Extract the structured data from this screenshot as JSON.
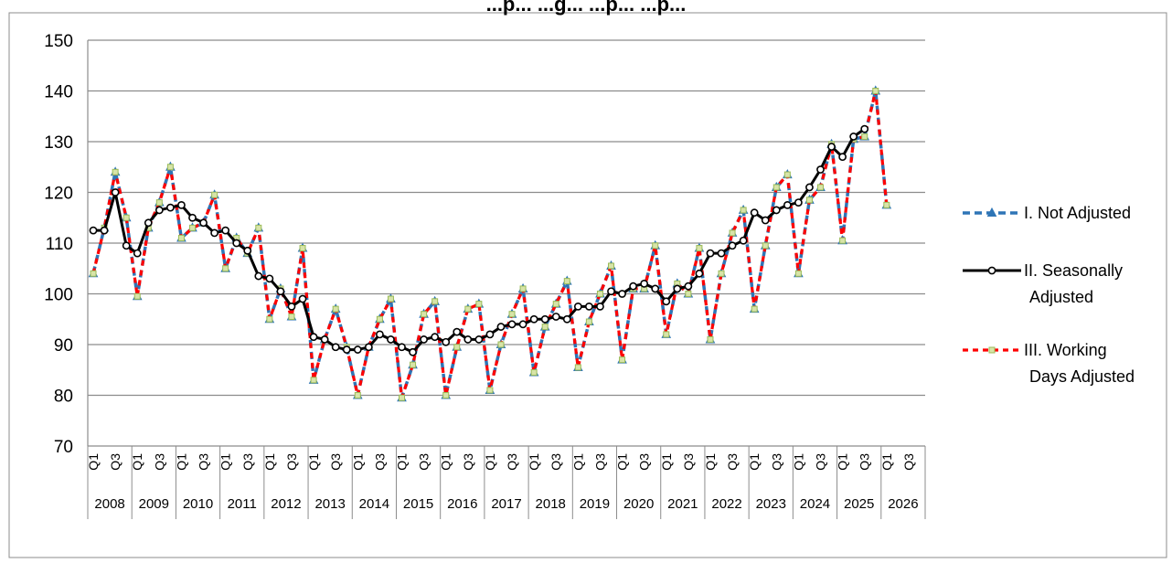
{
  "chart_data": {
    "type": "line",
    "title": "...p... ...g... ...p... ...p...",
    "xlabel": "",
    "ylabel": "",
    "ylim": [
      70,
      150
    ],
    "yticks": [
      70,
      80,
      90,
      100,
      110,
      120,
      130,
      140,
      150
    ],
    "grid": true,
    "legend_position": "right",
    "quarter_tick_labels": [
      "Q1",
      "Q3"
    ],
    "years": [
      "2008",
      "2009",
      "2010",
      "2011",
      "2012",
      "2013",
      "2014",
      "2015",
      "2016",
      "2017",
      "2018",
      "2019",
      "2020",
      "2021",
      "2022",
      "2023",
      "2024",
      "2025",
      "2026"
    ],
    "x_start": "2008-Q1",
    "series": [
      {
        "name": "I. Not Adjusted",
        "color": "#2E75B6",
        "marker": "triangle",
        "values": [
          104,
          113,
          124,
          115,
          99.5,
          113,
          118,
          125,
          111,
          113,
          114,
          119.5,
          105,
          111,
          108,
          113,
          95,
          101,
          95.5,
          109,
          83,
          91,
          97,
          89.5,
          80,
          89.5,
          95,
          99,
          79.5,
          86,
          96,
          98.5,
          80,
          89.5,
          97,
          98,
          81,
          90,
          96,
          101,
          84.5,
          93.5,
          98,
          102.5,
          85.5,
          94.5,
          100,
          105.5,
          87,
          101,
          101,
          109.5,
          92,
          102,
          100,
          109,
          91,
          104,
          112,
          116.5,
          97,
          109.5,
          121,
          123.5,
          104,
          118.5,
          121,
          129.5,
          110.5,
          130.5,
          131,
          140,
          117.5
        ]
      },
      {
        "name": "II. Seasonally Adjusted",
        "color": "#000000",
        "marker": "circle",
        "values": [
          112.5,
          112.5,
          120,
          109.5,
          108,
          114,
          116.5,
          117,
          117.5,
          115,
          114,
          112,
          112.5,
          110,
          108.5,
          103.5,
          103,
          100.5,
          97.5,
          99,
          91.5,
          91,
          89.5,
          89,
          89,
          89.5,
          92,
          91,
          89.5,
          88.5,
          91,
          91.5,
          90.5,
          92.5,
          91,
          91,
          92,
          93.5,
          94,
          94,
          95,
          95,
          95.5,
          95,
          97.5,
          97.5,
          97.5,
          100.5,
          100,
          101.5,
          102,
          101,
          98.5,
          101,
          101.5,
          104,
          108,
          108,
          109.5,
          110.5,
          116,
          114.5,
          116.5,
          117.5,
          118,
          121,
          124.5,
          129,
          127,
          131,
          132.5
        ]
      },
      {
        "name": "III. Working Days Adjusted",
        "color": "#FF0000",
        "marker": "square",
        "values": [
          104,
          113,
          124,
          115,
          99.5,
          113,
          118,
          125,
          111,
          113,
          114,
          119.5,
          105,
          111,
          108,
          113,
          95,
          101,
          95.5,
          109,
          83,
          91,
          97,
          89.5,
          80,
          89.5,
          95,
          99,
          79.5,
          86,
          96,
          98.5,
          80,
          89.5,
          97,
          98,
          81,
          90,
          96,
          101,
          84.5,
          93.5,
          98,
          102.5,
          85.5,
          94.5,
          100,
          105.5,
          87,
          101,
          101,
          109.5,
          92,
          102,
          100,
          109,
          91,
          104,
          112,
          116.5,
          97,
          109.5,
          121,
          123.5,
          104,
          118.5,
          121,
          129.5,
          110.5,
          130.5,
          131,
          140,
          117.5
        ]
      }
    ]
  }
}
